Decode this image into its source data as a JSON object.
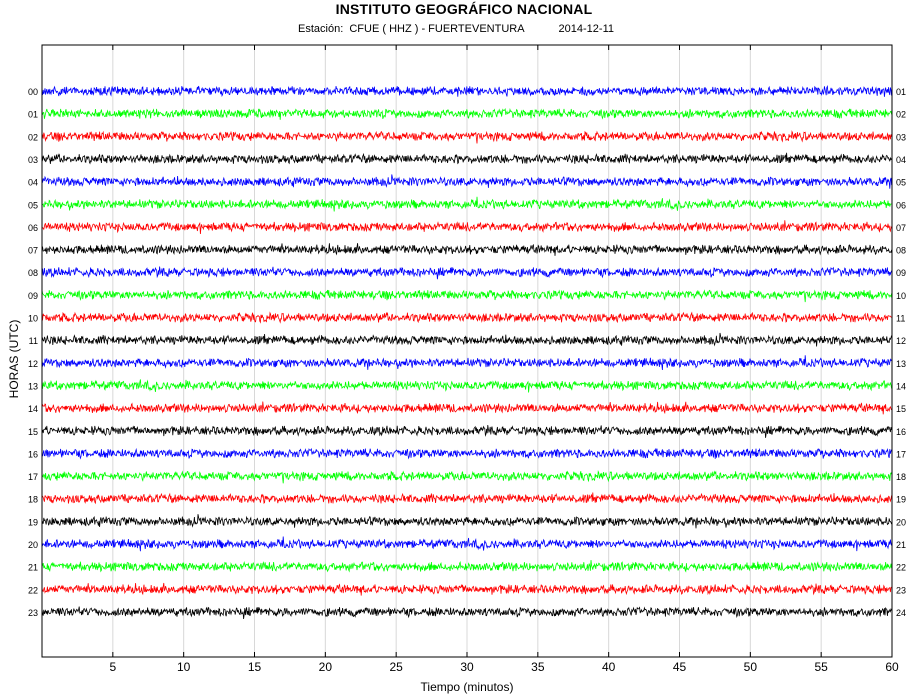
{
  "title": "INSTITUTO GEOGRÁFICO NACIONAL",
  "subtitle": {
    "station": "Estación:  CFUE ( HHZ ) - FUERTEVENTURA",
    "date": "2014-12-11"
  },
  "chart_data": {
    "type": "line",
    "title": "INSTITUTO GEOGRÁFICO NACIONAL",
    "xlabel": "Tiempo (minutos)",
    "ylabel": "HORAS (UTC)",
    "xlim": [
      0,
      60
    ],
    "x_ticks": [
      5,
      10,
      15,
      20,
      25,
      30,
      35,
      40,
      45,
      50,
      55,
      60
    ],
    "left_hour_labels": [
      "00",
      "01",
      "02",
      "03",
      "04",
      "05",
      "06",
      "07",
      "08",
      "09",
      "10",
      "11",
      "12",
      "13",
      "14",
      "15",
      "16",
      "17",
      "18",
      "19",
      "20",
      "21",
      "22",
      "23"
    ],
    "right_hour_labels": [
      "01",
      "02",
      "03",
      "04",
      "05",
      "06",
      "07",
      "08",
      "09",
      "10",
      "11",
      "12",
      "13",
      "14",
      "15",
      "16",
      "17",
      "18",
      "19",
      "20",
      "21",
      "22",
      "23",
      "24"
    ],
    "trace_colors": [
      "#0000ff",
      "#00ff00",
      "#ff0000",
      "#000000"
    ],
    "grid": "vertical",
    "series_note_values": "each trace is one hour of continuous seismic noise (amplitude not labeled)"
  },
  "colors": {
    "grid": "#d8d8d8",
    "axis": "#000000"
  }
}
